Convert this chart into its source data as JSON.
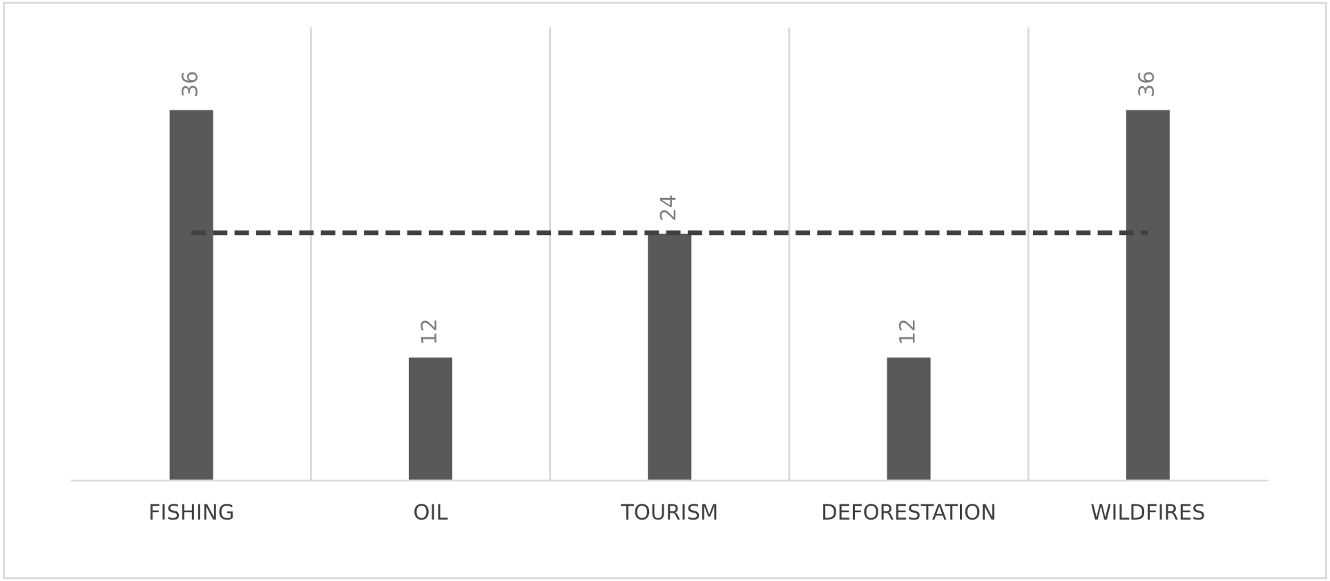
{
  "chart_data": {
    "type": "bar",
    "categories": [
      "FISHING",
      "OIL",
      "TOURISM",
      "DEFORESTATION",
      "WILDFIRES"
    ],
    "series": [
      {
        "color": "#595959",
        "values": [
          36,
          12,
          24,
          12,
          36
        ],
        "value_labels": [
          "36",
          "12",
          "24",
          "12",
          "36"
        ]
      },
      {
        "type": "line",
        "color": "#404040",
        "line_style": "dashed",
        "values": [
          24,
          24,
          24,
          24,
          24
        ]
      }
    ],
    "grid": "x",
    "legend": false
  }
}
